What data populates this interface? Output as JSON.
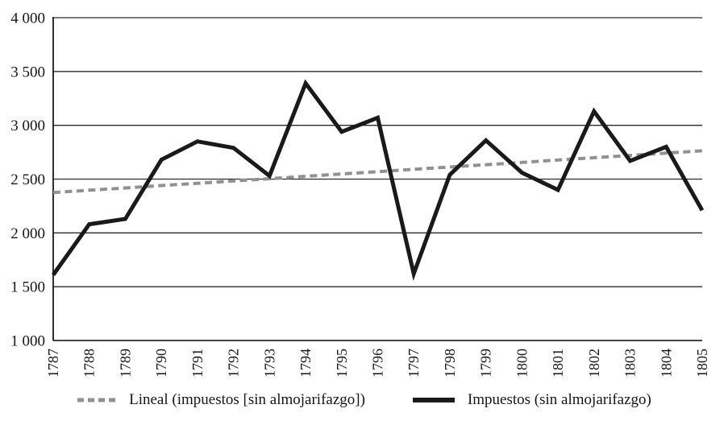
{
  "chart_data": {
    "type": "line",
    "title": "",
    "xlabel": "",
    "ylabel": "",
    "x": [
      "1787",
      "1788",
      "1789",
      "1790",
      "1791",
      "1792",
      "1793",
      "1794",
      "1795",
      "1796",
      "1797",
      "1798",
      "1799",
      "1800",
      "1801",
      "1802",
      "1803",
      "1804",
      "1805"
    ],
    "series": [
      {
        "name": "Lineal (impuestos [sin almojarifazgo])",
        "style": "dashed",
        "color": "#919191",
        "width": 4,
        "values": [
          2375,
          2397,
          2418,
          2440,
          2461,
          2483,
          2504,
          2526,
          2548,
          2569,
          2591,
          2612,
          2634,
          2655,
          2677,
          2699,
          2720,
          2742,
          2763
        ]
      },
      {
        "name": "Impuestos (sin almojarifazgo)",
        "style": "solid",
        "color": "#1a1a1a",
        "width": 5,
        "values": [
          1610,
          2080,
          2130,
          2680,
          2850,
          2790,
          2530,
          3390,
          2940,
          3070,
          1620,
          2540,
          2860,
          2560,
          2400,
          3130,
          2670,
          2800,
          2210
        ]
      }
    ],
    "ylim": [
      1000,
      4000
    ],
    "ytick_step": 500,
    "ytick_labels": [
      "1 000",
      "1 500",
      "2 000",
      "2 500",
      "3 000",
      "3 500",
      "4 000"
    ],
    "grid": "horizontal-only",
    "grid_color": "#2b2b2b",
    "axis_color": "#1a1a1a",
    "legend_position": "bottom-center"
  }
}
